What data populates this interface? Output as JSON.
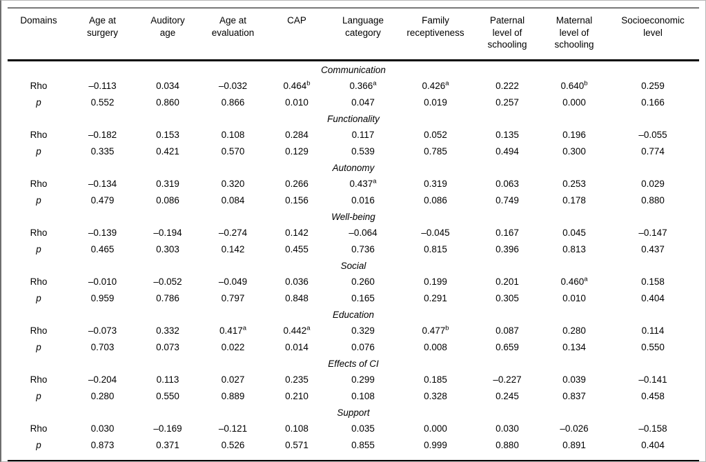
{
  "colors": {
    "background": "#ffffff",
    "text": "#000000",
    "rule": "#000000"
  },
  "table": {
    "columns": [
      "Domains",
      "Age at\nsurgery",
      "Auditory\nage",
      "Age at\nevaluation",
      "CAP",
      "Language\ncategory",
      "Family\nreceptiveness",
      "Paternal\nlevel of\nschooling",
      "Maternal\nlevel of\nschooling",
      "Socioeconomic\nlevel"
    ],
    "row_labels": {
      "rho": "Rho",
      "p": "p"
    },
    "sections": [
      {
        "title": "Communication",
        "rho": [
          "–0.113",
          "0.034",
          "–0.032",
          {
            "v": "0.464",
            "sup": "b"
          },
          {
            "v": "0.366",
            "sup": "a"
          },
          {
            "v": "0.426",
            "sup": "a"
          },
          "0.222",
          {
            "v": "0.640",
            "sup": "b"
          },
          "0.259"
        ],
        "p": [
          "0.552",
          "0.860",
          "0.866",
          "0.010",
          "0.047",
          "0.019",
          "0.257",
          "0.000",
          "0.166"
        ]
      },
      {
        "title": "Functionality",
        "rho": [
          "–0.182",
          "0.153",
          "0.108",
          "0.284",
          "0.117",
          "0.052",
          "0.135",
          "0.196",
          "–0.055"
        ],
        "p": [
          "0.335",
          "0.421",
          "0.570",
          "0.129",
          "0.539",
          "0.785",
          "0.494",
          "0.300",
          "0.774"
        ]
      },
      {
        "title": "Autonomy",
        "rho": [
          "–0.134",
          "0.319",
          "0.320",
          "0.266",
          {
            "v": "0.437",
            "sup": "a"
          },
          "0.319",
          "0.063",
          "0.253",
          "0.029"
        ],
        "p": [
          "0.479",
          "0.086",
          "0.084",
          "0.156",
          "0.016",
          "0.086",
          "0.749",
          "0.178",
          "0.880"
        ]
      },
      {
        "title": "Well-being",
        "rho": [
          "–0.139",
          "–0.194",
          "–0.274",
          "0.142",
          "–0.064",
          "–0.045",
          "0.167",
          "0.045",
          "–0.147"
        ],
        "p": [
          "0.465",
          "0.303",
          "0.142",
          "0.455",
          "0.736",
          "0.815",
          "0.396",
          "0.813",
          "0.437"
        ]
      },
      {
        "title": "Social",
        "rho": [
          "–0.010",
          "–0.052",
          "–0.049",
          "0.036",
          "0.260",
          "0.199",
          "0.201",
          {
            "v": "0.460",
            "sup": "a"
          },
          "0.158"
        ],
        "p": [
          "0.959",
          "0.786",
          "0.797",
          "0.848",
          "0.165",
          "0.291",
          "0.305",
          "0.010",
          "0.404"
        ]
      },
      {
        "title": "Education",
        "rho": [
          "–0.073",
          "0.332",
          {
            "v": "0.417",
            "sup": "a"
          },
          {
            "v": "0.442",
            "sup": "a"
          },
          "0.329",
          {
            "v": "0.477",
            "sup": "b"
          },
          "0.087",
          "0.280",
          "0.114"
        ],
        "p": [
          "0.703",
          "0.073",
          "0.022",
          "0.014",
          "0.076",
          "0.008",
          "0.659",
          "0.134",
          "0.550"
        ]
      },
      {
        "title": "Effects of CI",
        "rho": [
          "–0.204",
          "0.113",
          "0.027",
          "0.235",
          "0.299",
          "0.185",
          "–0.227",
          "0.039",
          "–0.141"
        ],
        "p": [
          "0.280",
          "0.550",
          "0.889",
          "0.210",
          "0.108",
          "0.328",
          "0.245",
          "0.837",
          "0.458"
        ]
      },
      {
        "title": "Support",
        "rho": [
          "0.030",
          "–0.169",
          "–0.121",
          "0.108",
          "0.035",
          "0.000",
          "0.030",
          "–0.026",
          "–0.158"
        ],
        "p": [
          "0.873",
          "0.371",
          "0.526",
          "0.571",
          "0.855",
          "0.999",
          "0.880",
          "0.891",
          "0.404"
        ]
      }
    ]
  }
}
